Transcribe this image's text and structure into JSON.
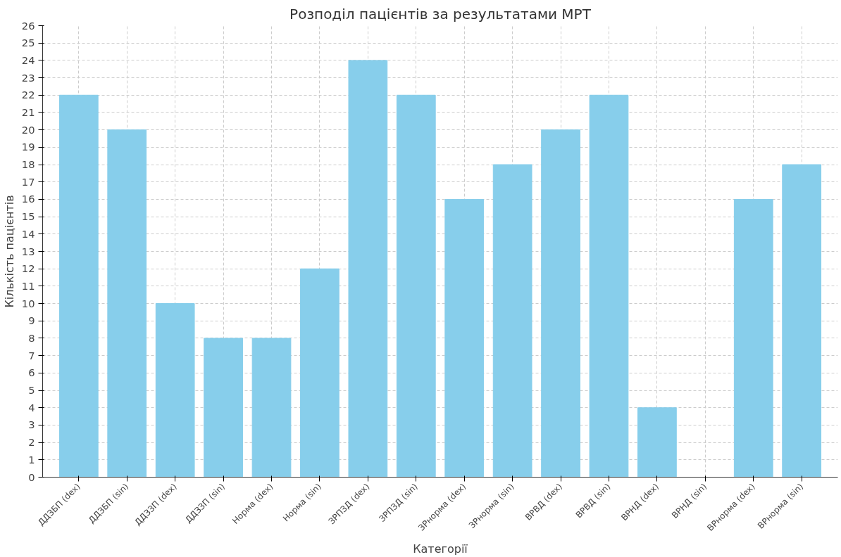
{
  "chart_data": {
    "type": "bar",
    "title": "Розподіл пацієнтів за результатами МРТ",
    "xlabel": "Категорії",
    "ylabel": "Кількість пацієнтів",
    "categories": [
      "ДДЗБП (dex)",
      "ДДЗБП (sin)",
      "ДДЗЗП (dex)",
      "ДДЗЗП (sin)",
      "Норма (dex)",
      "Норма (sin)",
      "ЗРПЗД (dex)",
      "ЗРПЗД (sin)",
      "ЗРнорма (dex)",
      "ЗРнорма (sin)",
      "ВРВД (dex)",
      "ВРВД (sin)",
      "ВРНД (dex)",
      "ВРНД (sin)",
      "ВРнорма (dex)",
      "ВРнорма (sin)"
    ],
    "values": [
      22,
      20,
      10,
      8,
      8,
      12,
      24,
      22,
      16,
      18,
      20,
      22,
      4,
      0,
      16,
      18
    ],
    "color": "#87ceeb",
    "ylim": [
      0,
      26
    ],
    "yticks": [
      0,
      1,
      2,
      3,
      4,
      5,
      6,
      7,
      8,
      9,
      10,
      11,
      12,
      13,
      14,
      15,
      16,
      17,
      18,
      19,
      20,
      21,
      22,
      23,
      24,
      25,
      26
    ],
    "grid": true
  }
}
